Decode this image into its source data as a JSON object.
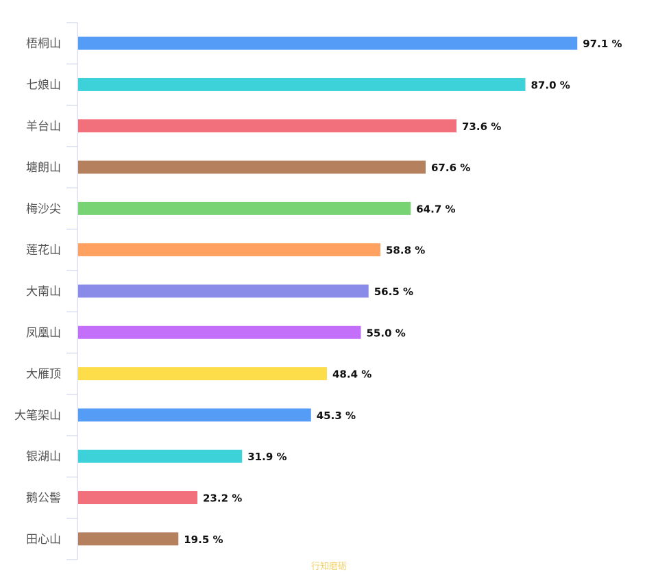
{
  "chart_data": {
    "type": "bar",
    "orientation": "horizontal",
    "categories": [
      "梧桐山",
      "七娘山",
      "羊台山",
      "塘朗山",
      "梅沙尖",
      "莲花山",
      "大南山",
      "凤凰山",
      "大雁顶",
      "大笔架山",
      "银湖山",
      "鹅公髻",
      "田心山"
    ],
    "values": [
      97.1,
      87.0,
      73.6,
      67.6,
      64.7,
      58.8,
      56.5,
      55.0,
      48.4,
      45.3,
      31.9,
      23.2,
      19.5
    ],
    "value_labels": [
      "97.1 %",
      "87.0 %",
      "73.6 %",
      "67.6 %",
      "64.7 %",
      "58.8 %",
      "56.5 %",
      "55.0 %",
      "48.4 %",
      "45.3 %",
      "31.9 %",
      "23.2 %",
      "19.5 %"
    ],
    "colors": [
      "#559cf7",
      "#3dd2da",
      "#f26f7c",
      "#b5805d",
      "#78d472",
      "#ffa261",
      "#8a8be8",
      "#c46ffa",
      "#fedd4b",
      "#559cf7",
      "#3dd2da",
      "#f26f7c",
      "#b5805d"
    ],
    "xlim": [
      0,
      100
    ],
    "title": "",
    "xlabel": "",
    "ylabel": "",
    "grid": false,
    "legend": "none"
  },
  "watermark": "行知磨砺"
}
